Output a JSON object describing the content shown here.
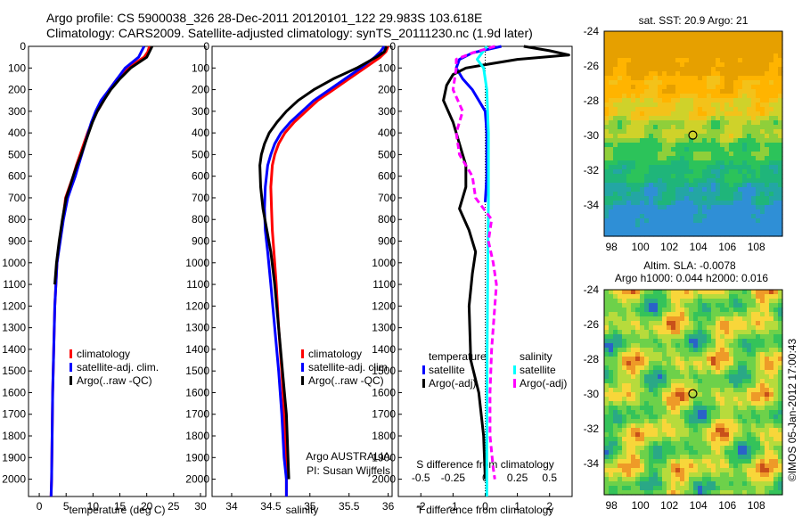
{
  "header": {
    "line1": "Argo profile: CS 5900038_326 28-Dec-2011 20120101_122 29.983S 103.618E",
    "line2": "Climatology: CARS2009. Satellite-adjusted climatology: synTS_20111230.nc (1.9d later)"
  },
  "copyright": "©IMOS 05-Jan-2012 17:00:43",
  "colors": {
    "clim": "#ff0000",
    "sat": "#0000ff",
    "argo": "#000000",
    "sat_s": "#00ffff",
    "argo_s": "#ff00ff"
  },
  "chart_data": [
    {
      "type": "line",
      "xlabel": "temperature (deg C)",
      "xlim": [
        -2,
        31
      ],
      "ylim": [
        2080,
        0
      ],
      "xticks": [
        0,
        5,
        10,
        15,
        20,
        25,
        30
      ],
      "yticks": [
        0,
        100,
        200,
        300,
        400,
        500,
        600,
        700,
        800,
        900,
        1000,
        1100,
        1200,
        1300,
        1400,
        1500,
        1600,
        1700,
        1800,
        1900,
        2000
      ],
      "legend": [
        "climatology",
        "satellite-adj. clim.",
        "Argo(..raw -QC)"
      ],
      "legend_position": "lower-right",
      "series": [
        {
          "name": "climatology",
          "color": "#ff0000",
          "x": [
            20.5,
            20.2,
            19.5,
            16.5,
            14.5,
            13,
            12,
            10.8,
            9.8,
            9,
            8.3,
            7.6,
            6.9,
            6.3,
            5.6,
            4.9,
            4.4,
            3.8,
            3.3,
            2.9,
            2.7,
            2.5,
            2.4,
            2.3,
            2.2
          ],
          "y": [
            0,
            25,
            50,
            100,
            150,
            200,
            250,
            300,
            350,
            400,
            450,
            500,
            550,
            600,
            650,
            700,
            800,
            900,
            1000,
            1200,
            1400,
            1600,
            1800,
            2000,
            2080
          ]
        },
        {
          "name": "satellite-adj. clim.",
          "color": "#0000ff",
          "x": [
            19.5,
            19,
            18.5,
            16,
            14.5,
            13,
            11.5,
            10.5,
            9.7,
            9.1,
            8.5,
            7.9,
            7.3,
            6.7,
            6,
            5.3,
            4.5,
            3.9,
            3.3,
            2.9,
            2.7,
            2.5,
            2.4,
            2.3,
            2.2
          ],
          "y": [
            0,
            25,
            50,
            100,
            150,
            200,
            250,
            300,
            350,
            400,
            450,
            500,
            550,
            600,
            650,
            700,
            800,
            900,
            1000,
            1200,
            1400,
            1600,
            1800,
            2000,
            2080
          ]
        },
        {
          "name": "Argo(..raw -QC)",
          "color": "#000000",
          "x": [
            21,
            20.5,
            20,
            17,
            15,
            13.3,
            12,
            10.8,
            9.9,
            9.2,
            8.5,
            7.8,
            7,
            6.3,
            5.7,
            5,
            4.3,
            3.7,
            3.2,
            2.9
          ],
          "y": [
            0,
            25,
            50,
            100,
            150,
            200,
            250,
            300,
            350,
            400,
            450,
            500,
            550,
            600,
            650,
            700,
            800,
            900,
            1000,
            1100
          ]
        }
      ]
    },
    {
      "type": "line",
      "xlabel": "salinity",
      "xlim": [
        33.75,
        36.05
      ],
      "ylim": [
        2080,
        0
      ],
      "xticks": [
        34,
        34.5,
        35,
        35.5,
        36
      ],
      "yticks": [
        0,
        100,
        200,
        300,
        400,
        500,
        600,
        700,
        800,
        900,
        1000,
        1100,
        1200,
        1300,
        1400,
        1500,
        1600,
        1700,
        1800,
        1900,
        2000
      ],
      "legend": [
        "climatology",
        "satellite-adj. clim.",
        "Argo(..raw -QC)"
      ],
      "legend_position": "lower-right",
      "annotations": [
        "Argo AUSTRALIA",
        "PI: Susan Wijffels"
      ],
      "series": [
        {
          "name": "climatology",
          "color": "#ff0000",
          "x": [
            36,
            35.97,
            35.9,
            35.7,
            35.5,
            35.3,
            35.1,
            34.95,
            34.8,
            34.68,
            34.6,
            34.55,
            34.52,
            34.5,
            34.51,
            34.52,
            34.54,
            34.57,
            34.6,
            34.64,
            34.67,
            34.69,
            34.7,
            34.7
          ],
          "y": [
            0,
            25,
            50,
            100,
            150,
            200,
            250,
            300,
            350,
            400,
            450,
            500,
            550,
            650,
            750,
            850,
            950,
            1100,
            1300,
            1500,
            1700,
            1900,
            2000,
            2080
          ]
        },
        {
          "name": "satellite-adj. clim.",
          "color": "#0000ff",
          "x": [
            35.95,
            35.9,
            35.83,
            35.65,
            35.45,
            35.25,
            35.05,
            34.9,
            34.75,
            34.63,
            34.55,
            34.5,
            34.46,
            34.43,
            34.42,
            34.43,
            34.46,
            34.5,
            34.55,
            34.6,
            34.64,
            34.67,
            34.7,
            34.7
          ],
          "y": [
            0,
            25,
            50,
            100,
            150,
            200,
            250,
            300,
            350,
            400,
            450,
            500,
            550,
            650,
            750,
            850,
            950,
            1100,
            1300,
            1500,
            1700,
            1900,
            2000,
            2080
          ]
        },
        {
          "name": "Argo(..raw -QC)",
          "color": "#000000",
          "x": [
            35.98,
            35.95,
            35.85,
            35.6,
            35.3,
            35.05,
            34.85,
            34.7,
            34.58,
            34.48,
            34.42,
            34.38,
            34.36,
            34.37,
            34.4,
            34.45,
            34.5,
            34.55,
            34.6,
            34.65,
            34.7,
            34.72,
            34.73
          ],
          "y": [
            0,
            25,
            50,
            100,
            150,
            200,
            250,
            300,
            350,
            400,
            450,
            500,
            550,
            650,
            750,
            850,
            950,
            1100,
            1300,
            1500,
            1700,
            1900,
            2000
          ]
        }
      ]
    },
    {
      "type": "line",
      "xlabel": "T difference from climatology",
      "x2label": "S difference from climatology",
      "xlim": [
        -2.7,
        2.7
      ],
      "ylim": [
        2080,
        0
      ],
      "xticks": [
        -2,
        -1,
        0,
        1,
        2
      ],
      "x2ticks": [
        "-0.5",
        "-0.25",
        "0",
        "0.25",
        "0.5"
      ],
      "yticks": [
        0,
        100,
        200,
        300,
        400,
        500,
        600,
        700,
        800,
        900,
        1000,
        1100,
        1200,
        1300,
        1400,
        1500,
        1600,
        1700,
        1800,
        1900,
        2000
      ],
      "legend_titles": [
        "temperature",
        "salinity"
      ],
      "legend": [
        "satellite",
        "Argo(-adj)",
        "satellite",
        "Argo(-adj)"
      ],
      "legend_position": "lower",
      "series": [
        {
          "name": "satellite",
          "group": "temperature",
          "color": "#0000ff",
          "x": [
            0.5,
            -0.4,
            -0.8,
            -0.9,
            -0.7,
            -0.4,
            -0.2,
            0,
            0.05,
            0.05,
            0.05,
            0
          ],
          "y": [
            0,
            30,
            60,
            100,
            150,
            200,
            250,
            300,
            400,
            500,
            600,
            720
          ]
        },
        {
          "name": "Argo(-adj)",
          "group": "temperature",
          "color": "#000000",
          "x": [
            1.2,
            2,
            2.6,
            1,
            0.2,
            -0.6,
            -1,
            -1.2,
            -1.3,
            -1,
            -0.8,
            -0.6,
            -0.6,
            -0.8,
            -0.5,
            -0.3,
            -0.4,
            -0.5,
            -0.45,
            -0.2,
            -0.05,
            0
          ],
          "y": [
            0,
            20,
            40,
            60,
            80,
            100,
            130,
            180,
            250,
            350,
            450,
            550,
            650,
            750,
            850,
            950,
            1050,
            1200,
            1450,
            1600,
            1800,
            2000
          ]
        },
        {
          "name": "satellite",
          "group": "salinity",
          "color": "#00ffff",
          "x": [
            0.05,
            -0.1,
            -0.25,
            -0.05,
            0.05,
            0.1,
            0.1,
            0.08,
            0.06,
            0.05,
            0.05
          ],
          "y": [
            0,
            30,
            60,
            100,
            200,
            400,
            700,
            1000,
            1400,
            1800,
            2080
          ]
        },
        {
          "name": "Argo(-adj)",
          "group": "salinity",
          "color": "#ff00ff",
          "x": [
            0.3,
            -0.4,
            -0.9,
            -0.9,
            -1,
            -0.7,
            -0.9,
            -0.8,
            -0.4,
            -0.3,
            0.2,
            0.1,
            0.25,
            0.35,
            0.3,
            0.2,
            0.15,
            0.15,
            0.25,
            0.3
          ],
          "y": [
            0,
            30,
            60,
            100,
            200,
            300,
            400,
            500,
            600,
            700,
            800,
            900,
            1000,
            1100,
            1200,
            1400,
            1600,
            1800,
            1950,
            2000
          ]
        }
      ]
    },
    {
      "type": "heatmap",
      "title": "sat. SST: 20.9  Argo: 21",
      "xlim": [
        97.5,
        109.8
      ],
      "ylim": [
        -35.8,
        -24
      ],
      "xticks": [
        98,
        100,
        102,
        104,
        106,
        108
      ],
      "yticks": [
        -24,
        -26,
        -28,
        -30,
        -32,
        -34
      ],
      "marker": {
        "x": 103.618,
        "y": -29.983
      }
    },
    {
      "type": "heatmap",
      "title": "Altim. SLA: -0.0078",
      "subtitle": "Argo h1000: 0.044  h2000: 0.016",
      "xlim": [
        97.5,
        109.8
      ],
      "ylim": [
        -35.8,
        -24
      ],
      "xticks": [
        98,
        100,
        102,
        104,
        106,
        108
      ],
      "yticks": [
        -24,
        -26,
        -28,
        -30,
        -32,
        -34
      ],
      "marker": {
        "x": 103.618,
        "y": -29.983
      }
    }
  ]
}
